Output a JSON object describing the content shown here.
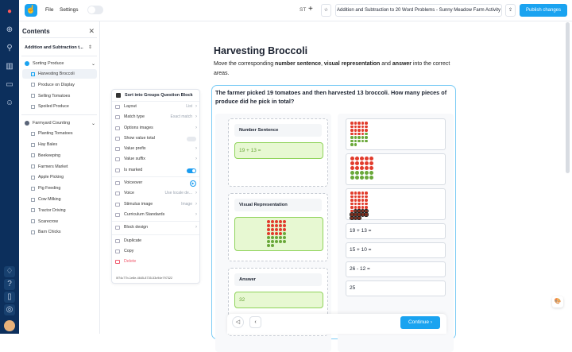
{
  "topbar": {
    "file": "File",
    "settings": "Settings",
    "avatar_initials": "ST",
    "activity_title": "Addition and Subtraction to 20 Word Problems - Sunny Meadow Farm Activity",
    "publish": "Publish changes"
  },
  "contents": {
    "title": "Contents",
    "lesson": "Addition and Subtraction t...",
    "sections": [
      {
        "title": "Sorting Produce",
        "color": "#1aa3f0",
        "items": [
          "Harvesting Broccoli",
          "Produce on Display",
          "Selling Tomatoes",
          "Spoiled Produce"
        ]
      },
      {
        "title": "Farmyard Counting",
        "color": "#5a6478",
        "items": [
          "Planting Tomatoes",
          "Hay Bales",
          "Beekeeping",
          "Farmers Market",
          "Apple Picking",
          "Pig Feeding",
          "Cow Milking",
          "Tractor Driving",
          "Scarecrow",
          "Barn Chicks"
        ]
      }
    ]
  },
  "settings": {
    "title": "Sort into Groups Question Block",
    "rows": [
      {
        "label": "Layout",
        "value": "List"
      },
      {
        "label": "Match type",
        "value": "Exact match"
      },
      {
        "label": "Options images",
        "value": ""
      },
      {
        "label": "Show value total",
        "toggle": false
      },
      {
        "label": "Value prefix",
        "value": ""
      },
      {
        "label": "Value suffix",
        "value": ""
      },
      {
        "label": "Is marked",
        "toggle": true
      }
    ],
    "voiceover": "Voiceover",
    "voice": "Voice",
    "voice_value": "Use locale de...",
    "stimulus": "Stimulus image",
    "stimulus_value": "Image",
    "curriculum": "Curriculum Standards",
    "block_design": "Block design",
    "duplicate": "Duplicate",
    "copy": "Copy",
    "delete": "Delete",
    "uuid": "0f74c77b-1e8e-4645-8735-53c94e797322"
  },
  "main": {
    "title": "Harvesting Broccoli",
    "instr_pre": "Move the corresponding ",
    "b1": "number sentence",
    "c1": ", ",
    "b2": "visual representation",
    "c2": " and ",
    "b3": "answer",
    "instr_post": " into the correct areas.",
    "question": "The farmer picked 19 tomatoes and then harvested 13 broccoli. How many pieces of produce did he pick in total?",
    "zones": [
      {
        "label": "Number Sentence",
        "value": "19 + 13 ="
      },
      {
        "label": "Visual Representation",
        "image": {
          "tomatoes": 19,
          "broccoli": 13
        }
      },
      {
        "label": "Answer",
        "value": "32"
      }
    ],
    "options": [
      {
        "image": {
          "tomatoes": 19,
          "broccoli": 13
        }
      },
      {
        "image": {
          "tomatoes": 15,
          "broccoli": 10
        }
      },
      {
        "image": {
          "tomatoes": 26,
          "crossed": 12
        }
      },
      {
        "text": "19 + 13 ="
      },
      {
        "text": "15 + 10 ="
      },
      {
        "text": "26 - 12 ="
      },
      {
        "text": "25"
      }
    ],
    "continue": "Continue"
  },
  "colors": {
    "accent": "#1aa3f0",
    "rail": "#0c2f5c",
    "tomato": "#e23c2c",
    "broccoli": "#6aa83a",
    "correct_bg": "#e7f8d2"
  }
}
